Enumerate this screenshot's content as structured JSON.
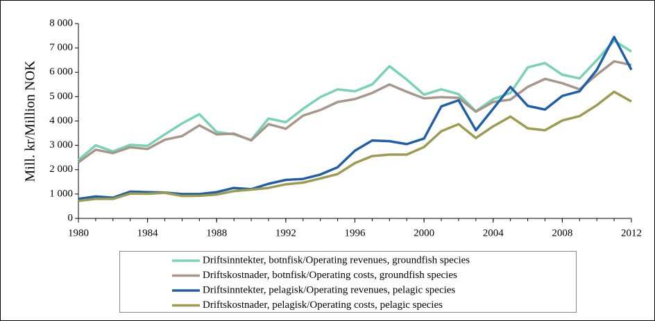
{
  "chart_data": {
    "type": "line",
    "y_label": "Mill. kr/Million NOK",
    "x": [
      1980,
      1981,
      1982,
      1983,
      1984,
      1985,
      1986,
      1987,
      1988,
      1989,
      1990,
      1991,
      1992,
      1993,
      1994,
      1995,
      1996,
      1997,
      1998,
      1999,
      2000,
      2001,
      2002,
      2003,
      2004,
      2005,
      2006,
      2007,
      2008,
      2009,
      2010,
      2011,
      2012
    ],
    "xlim": [
      1980,
      2012
    ],
    "xticks": [
      1980,
      1984,
      1988,
      1992,
      1996,
      2000,
      2004,
      2008,
      2012
    ],
    "ylim": [
      0,
      8000
    ],
    "yticks": [
      0,
      {
        "value": 1000,
        "label": "1 000"
      },
      {
        "value": 2000,
        "label": "2 000"
      },
      {
        "value": 3000,
        "label": "3 000"
      },
      {
        "value": 4000,
        "label": "4 000"
      },
      {
        "value": 5000,
        "label": "5 000"
      },
      {
        "value": 6000,
        "label": "6 000"
      },
      {
        "value": 7000,
        "label": "7 000"
      },
      {
        "value": 8000,
        "label": "8 000"
      }
    ],
    "series": [
      {
        "name": "Driftsinntekter, botnfisk/Operating revenues, groundfish species",
        "color": "#77d3b3",
        "values": [
          2400,
          3000,
          2750,
          3020,
          2980,
          3450,
          3900,
          4280,
          3550,
          3450,
          3220,
          4100,
          3950,
          4500,
          4980,
          5300,
          5220,
          5500,
          6250,
          5700,
          5080,
          5300,
          5100,
          4400,
          4900,
          5150,
          6200,
          6380,
          5900,
          5750,
          6500,
          7300,
          6850
        ]
      },
      {
        "name": "Driftskostnader, botnfisk/Operating costs, groundfish species",
        "color": "#a8968b",
        "values": [
          2300,
          2820,
          2680,
          2920,
          2850,
          3230,
          3380,
          3820,
          3450,
          3480,
          3200,
          3870,
          3680,
          4220,
          4450,
          4780,
          4900,
          5150,
          5500,
          5200,
          4930,
          4980,
          4950,
          4380,
          4780,
          4880,
          5400,
          5730,
          5550,
          5300,
          5900,
          6450,
          6300
        ]
      },
      {
        "name": "Driftsinntekter, pelagisk/Operating revenues, pelagic species",
        "color": "#1f5fa8",
        "values": [
          800,
          900,
          850,
          1100,
          1080,
          1060,
          1000,
          1000,
          1080,
          1250,
          1200,
          1420,
          1580,
          1620,
          1800,
          2100,
          2780,
          3200,
          3170,
          3050,
          3280,
          4600,
          4850,
          3620,
          4500,
          5400,
          4620,
          4470,
          5030,
          5220,
          6100,
          7450,
          6100
        ]
      },
      {
        "name": "Driftskostnader, pelagisk/Operating costs, pelagic species",
        "color": "#9c9b50",
        "values": [
          720,
          800,
          800,
          1020,
          1010,
          1050,
          920,
          930,
          980,
          1120,
          1180,
          1250,
          1400,
          1470,
          1640,
          1820,
          2270,
          2560,
          2620,
          2620,
          2930,
          3580,
          3870,
          3300,
          3780,
          4180,
          3700,
          3620,
          4020,
          4200,
          4650,
          5200,
          4800
        ]
      }
    ]
  }
}
